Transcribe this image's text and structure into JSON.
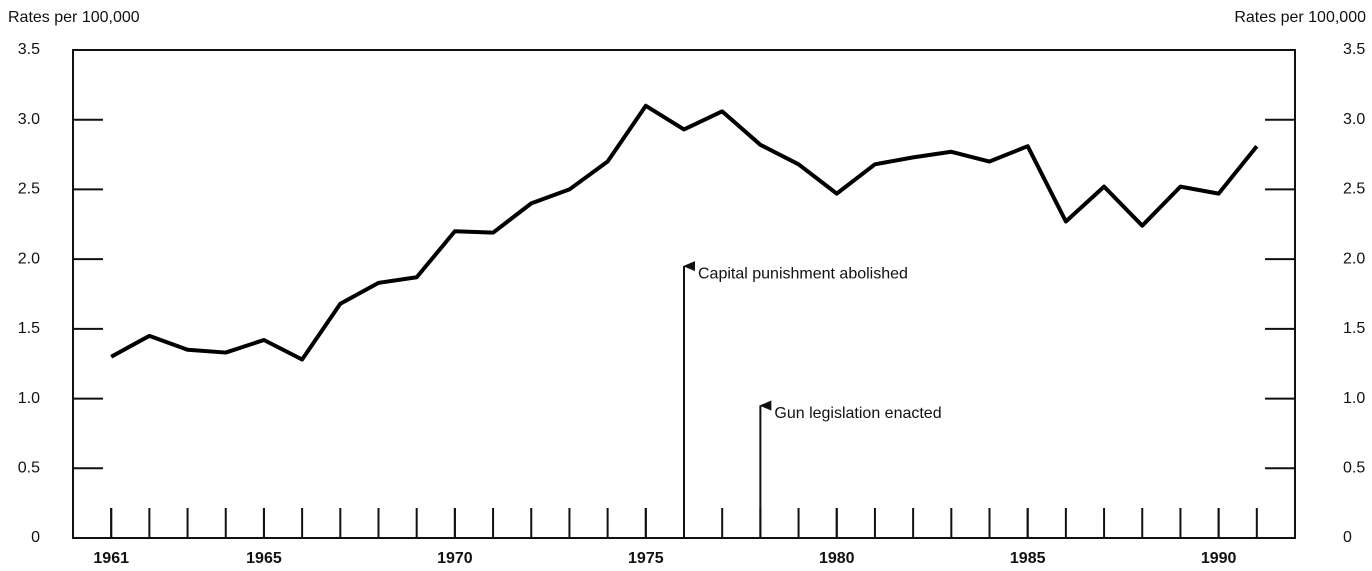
{
  "chart_data": {
    "type": "line",
    "ylabel": "Rates per 100,000",
    "y2label": "Rates per 100,000",
    "x": [
      1961,
      1962,
      1963,
      1964,
      1965,
      1966,
      1967,
      1968,
      1969,
      1970,
      1971,
      1972,
      1973,
      1974,
      1975,
      1976,
      1977,
      1978,
      1979,
      1980,
      1981,
      1982,
      1983,
      1984,
      1985,
      1986,
      1987,
      1988,
      1989,
      1990,
      1991
    ],
    "values": [
      1.3,
      1.45,
      1.35,
      1.33,
      1.42,
      1.28,
      1.68,
      1.83,
      1.87,
      2.2,
      2.19,
      2.4,
      2.5,
      2.7,
      3.1,
      2.93,
      3.06,
      2.82,
      2.68,
      2.47,
      2.68,
      2.73,
      2.77,
      2.7,
      2.81,
      2.27,
      2.52,
      2.24,
      2.52,
      2.47,
      2.81
    ],
    "color": "#000000",
    "xlim": [
      1960,
      1992
    ],
    "xticks": [
      1961,
      1965,
      1970,
      1975,
      1980,
      1985,
      1990
    ],
    "ylim": [
      0,
      3.5
    ],
    "yticks": [
      0,
      0.5,
      {
        "value": 1,
        "label": "1.0"
      },
      1.5,
      {
        "value": 2,
        "label": "2.0"
      },
      2.5,
      {
        "value": 3,
        "label": "3.0"
      },
      3.5
    ],
    "y2lim": [
      0,
      3.5
    ],
    "y2ticks": [
      0,
      0.5,
      {
        "value": 1,
        "label": "1.0"
      },
      1.5,
      {
        "value": 2,
        "label": "2.0"
      },
      2.5,
      {
        "value": 3,
        "label": "3.0"
      },
      3.5
    ],
    "annotations": [
      {
        "text": "Capital punishment abolished",
        "x": 1976,
        "y": 1.95
      },
      {
        "text": "Gun legislation enacted",
        "x": 1978,
        "y": 0.95
      }
    ]
  }
}
